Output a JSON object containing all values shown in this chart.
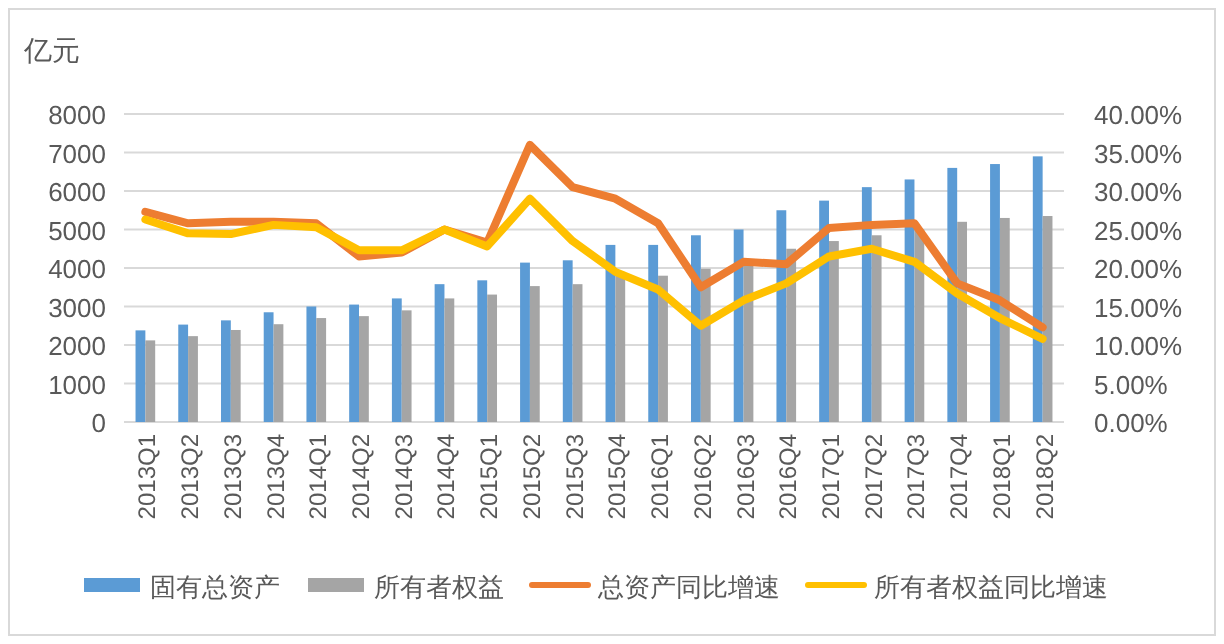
{
  "chart_data": {
    "type": "bar",
    "ylabel": "亿元",
    "categories": [
      "2013Q1",
      "2013Q2",
      "2013Q3",
      "2013Q4",
      "2014Q1",
      "2014Q2",
      "2014Q3",
      "2014Q4",
      "2015Q1",
      "2015Q2",
      "2015Q3",
      "2015Q4",
      "2016Q1",
      "2016Q2",
      "2016Q3",
      "2016Q4",
      "2017Q1",
      "2017Q2",
      "2017Q3",
      "2017Q4",
      "2018Q1",
      "2018Q2"
    ],
    "series": [
      {
        "name": "固有总资产",
        "color": "#5b9bd5",
        "values": [
          2380,
          2530,
          2640,
          2850,
          3000,
          3050,
          3210,
          3580,
          3680,
          4140,
          4200,
          4600,
          4600,
          4850,
          5000,
          5500,
          5750,
          6100,
          6300,
          6600,
          6700,
          6900
        ]
      },
      {
        "name": "所有者权益",
        "color": "#a5a5a5",
        "values": [
          2120,
          2230,
          2390,
          2540,
          2700,
          2750,
          2900,
          3210,
          3310,
          3530,
          3580,
          3900,
          3800,
          3980,
          4100,
          4500,
          4700,
          4850,
          5000,
          5200,
          5300,
          5350
        ]
      },
      {
        "name": "总资产同比增速",
        "type": "line",
        "axis": "y2",
        "color": "#ed7d31",
        "values": [
          27.3,
          25.8,
          26.0,
          26.0,
          25.8,
          21.5,
          22.0,
          25.0,
          23.3,
          36.0,
          30.5,
          29.0,
          25.8,
          17.5,
          20.8,
          20.5,
          25.2,
          25.6,
          25.8,
          18.0,
          15.8,
          12.3
        ]
      },
      {
        "name": "所有者权益同比增速",
        "type": "line",
        "axis": "y2",
        "color": "#ffc000",
        "values": [
          26.3,
          24.5,
          24.4,
          25.6,
          25.3,
          22.3,
          22.3,
          25.0,
          22.8,
          29.0,
          23.5,
          19.5,
          17.2,
          12.5,
          15.8,
          18.0,
          21.5,
          22.5,
          20.8,
          16.7,
          13.5,
          10.8
        ]
      }
    ],
    "ylim": [
      0,
      8000
    ],
    "yticks": [
      0,
      1000,
      2000,
      3000,
      4000,
      5000,
      6000,
      7000,
      8000
    ],
    "y2lim": [
      0,
      40
    ],
    "y2ticks": [
      {
        "value": 0,
        "label": "0.00%"
      },
      {
        "value": 5,
        "label": "5.00%"
      },
      {
        "value": 10,
        "label": "10.00%"
      },
      {
        "value": 15,
        "label": "15.00%"
      },
      {
        "value": 20,
        "label": "20.00%"
      },
      {
        "value": 25,
        "label": "25.00%"
      },
      {
        "value": 30,
        "label": "30.00%"
      },
      {
        "value": 35,
        "label": "35.00%"
      },
      {
        "value": 40,
        "label": "40.00%"
      }
    ],
    "grid": "y",
    "legend": "bottom",
    "marker": "none",
    "line_style": "solid"
  }
}
